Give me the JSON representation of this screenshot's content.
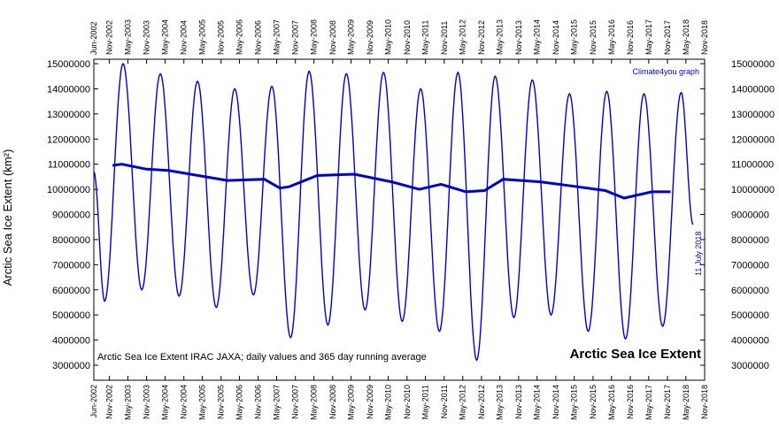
{
  "chart_data": {
    "type": "line",
    "ylabel": "Arctic Sea Ice Extent (km²)",
    "title": "Arctic Sea Ice Extent",
    "subtitle": "Arctic Sea Ice Extent IRAC JAXA; daily values and 365 day running average",
    "credit": "Climate4you graph",
    "end_annotation": "11 July 2018",
    "x_range": [
      "2002-06",
      "2018-11"
    ],
    "ylim": [
      3000000,
      15000000
    ],
    "y_ticks": [
      "3000000",
      "4000000",
      "5000000",
      "6000000",
      "7000000",
      "8000000",
      "9000000",
      "10000000",
      "11000000",
      "12000000",
      "13000000",
      "14000000",
      "15000000"
    ],
    "x_ticks": [
      "Jun-2002",
      "Nov-2002",
      "May-2003",
      "Nov-2003",
      "May-2004",
      "Nov-2004",
      "May-2005",
      "Nov-2005",
      "May-2006",
      "Nov-2006",
      "May-2007",
      "Nov-2007",
      "May-2008",
      "Nov-2008",
      "May-2009",
      "Nov-2009",
      "May-2010",
      "Nov-2010",
      "May-2011",
      "Nov-2011",
      "May-2012",
      "Nov-2012",
      "May-2013",
      "Nov-2013",
      "May-2014",
      "Nov-2014",
      "May-2015",
      "Nov-2015",
      "May-2016",
      "Nov-2016",
      "May-2017",
      "Nov-2017",
      "May-2018",
      "Nov-2018"
    ],
    "line_color": "#0000cc",
    "grid": false,
    "series": [
      {
        "values_note": "",
        "points": [
          [
            "2002-06-01",
            10700000
          ],
          [
            "2002-09-15",
            5550000
          ],
          [
            "2003-03-15",
            15000000
          ],
          [
            "2003-09-15",
            6000000
          ],
          [
            "2004-03-15",
            14600000
          ],
          [
            "2004-09-15",
            5750000
          ],
          [
            "2005-03-15",
            14300000
          ],
          [
            "2005-09-15",
            5300000
          ],
          [
            "2006-03-15",
            14000000
          ],
          [
            "2006-09-15",
            5800000
          ],
          [
            "2007-03-15",
            14100000
          ],
          [
            "2007-09-15",
            4100000
          ],
          [
            "2008-03-15",
            14700000
          ],
          [
            "2008-09-15",
            4600000
          ],
          [
            "2009-03-15",
            14600000
          ],
          [
            "2009-09-15",
            5200000
          ],
          [
            "2010-03-15",
            14650000
          ],
          [
            "2010-09-15",
            4750000
          ],
          [
            "2011-03-15",
            14000000
          ],
          [
            "2011-09-15",
            4350000
          ],
          [
            "2012-03-15",
            14650000
          ],
          [
            "2012-09-15",
            3200000
          ],
          [
            "2013-03-15",
            14500000
          ],
          [
            "2013-09-15",
            4900000
          ],
          [
            "2014-03-15",
            14350000
          ],
          [
            "2014-09-15",
            5000000
          ],
          [
            "2015-03-15",
            13800000
          ],
          [
            "2015-09-15",
            4350000
          ],
          [
            "2016-03-15",
            13900000
          ],
          [
            "2016-09-15",
            4050000
          ],
          [
            "2017-03-15",
            13800000
          ],
          [
            "2017-09-15",
            4550000
          ],
          [
            "2018-03-15",
            13850000
          ],
          [
            "2018-07-11",
            8600000
          ]
        ]
      },
      {
        "values_note": "365 day running average",
        "points": [
          [
            "2002-12-01",
            10950000
          ],
          [
            "2003-03-01",
            11000000
          ],
          [
            "2003-11-01",
            10800000
          ],
          [
            "2004-06-01",
            10750000
          ],
          [
            "2005-06-01",
            10500000
          ],
          [
            "2006-01-01",
            10350000
          ],
          [
            "2007-01-01",
            10400000
          ],
          [
            "2007-06-01",
            10050000
          ],
          [
            "2007-09-01",
            10100000
          ],
          [
            "2008-06-01",
            10550000
          ],
          [
            "2009-06-01",
            10600000
          ],
          [
            "2010-06-01",
            10300000
          ],
          [
            "2011-03-01",
            10000000
          ],
          [
            "2011-10-01",
            10200000
          ],
          [
            "2012-06-01",
            9900000
          ],
          [
            "2012-12-01",
            9950000
          ],
          [
            "2013-06-01",
            10400000
          ],
          [
            "2014-06-01",
            10300000
          ],
          [
            "2015-06-01",
            10100000
          ],
          [
            "2016-03-01",
            9950000
          ],
          [
            "2016-09-01",
            9650000
          ],
          [
            "2017-06-01",
            9900000
          ],
          [
            "2017-12-01",
            9900000
          ]
        ]
      }
    ]
  }
}
